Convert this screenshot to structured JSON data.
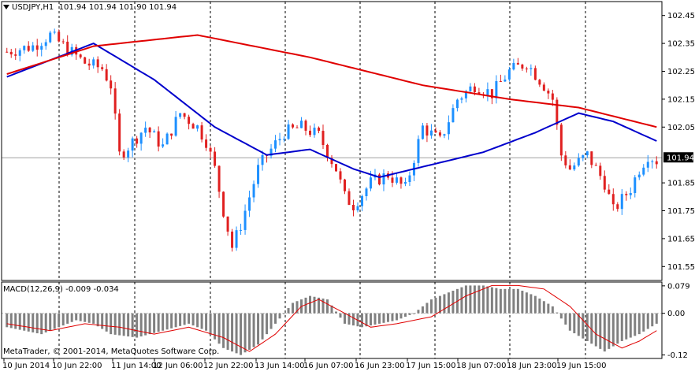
{
  "symbol_label": "USDJPY,H1",
  "ohlc_values": "101.94 101.94 101.90 101.94",
  "macd_label": "MACD(12,26,9)",
  "macd_values": "-0.009 -0.034",
  "copyright": "MetaTrader, © 2001-2014, MetaQuotes Software Corp.",
  "current_price_label": "101.94",
  "colors": {
    "bull": "#1e90ff",
    "bear": "#e02020",
    "ma_fast": "#0000cc",
    "ma_slow": "#e00000",
    "macd_hist": "#808080",
    "macd_signal": "#e00000"
  },
  "chart_data": [
    {
      "type": "candlestick",
      "yticks": [
        "102.45",
        "102.35",
        "102.25",
        "102.15",
        "102.05",
        "101.94",
        "101.85",
        "101.75",
        "101.65",
        "101.55"
      ],
      "ylim": [
        101.5,
        102.5
      ],
      "xticks": [
        "10 Jun 2014",
        "10 Jun 22:00",
        "11 Jun 14:00",
        "12 Jun 06:00",
        "12 Jun 22:00",
        "13 Jun 14:00",
        "16 Jun 07:00",
        "16 Jun 23:00",
        "17 Jun 15:00",
        "18 Jun 07:00",
        "18 Jun 23:00",
        "19 Jun 15:00"
      ],
      "current_price": 101.94,
      "price_keypoints": [
        [
          0,
          102.32
        ],
        [
          6,
          102.34
        ],
        [
          10,
          102.38
        ],
        [
          14,
          102.33
        ],
        [
          18,
          102.28
        ],
        [
          22,
          102.26
        ],
        [
          24,
          102.2
        ],
        [
          26,
          101.95
        ],
        [
          28,
          101.98
        ],
        [
          32,
          102.05
        ],
        [
          36,
          101.98
        ],
        [
          40,
          102.1
        ],
        [
          44,
          102.05
        ],
        [
          46,
          102.0
        ],
        [
          48,
          101.9
        ],
        [
          50,
          101.75
        ],
        [
          52,
          101.62
        ],
        [
          54,
          101.7
        ],
        [
          56,
          101.8
        ],
        [
          58,
          101.9
        ],
        [
          60,
          101.95
        ],
        [
          64,
          102.03
        ],
        [
          68,
          102.05
        ],
        [
          72,
          102.02
        ],
        [
          76,
          101.9
        ],
        [
          78,
          101.8
        ],
        [
          80,
          101.77
        ],
        [
          84,
          101.85
        ],
        [
          88,
          101.88
        ],
        [
          92,
          101.83
        ],
        [
          96,
          102.05
        ],
        [
          100,
          102.0
        ],
        [
          104,
          102.15
        ],
        [
          108,
          102.2
        ],
        [
          112,
          102.17
        ],
        [
          116,
          102.25
        ],
        [
          120,
          102.28
        ],
        [
          124,
          102.2
        ],
        [
          126,
          102.15
        ],
        [
          128,
          101.95
        ],
        [
          130,
          101.9
        ],
        [
          134,
          101.95
        ],
        [
          138,
          101.85
        ],
        [
          140,
          101.75
        ],
        [
          144,
          101.83
        ],
        [
          146,
          101.9
        ],
        [
          148,
          101.95
        ],
        [
          150,
          101.93
        ]
      ],
      "series": [
        {
          "name": "",
          "keypoints": [
            [
              0,
              102.23
            ],
            [
              20,
              102.35
            ],
            [
              34,
              102.22
            ],
            [
              48,
              102.05
            ],
            [
              60,
              101.95
            ],
            [
              70,
              101.97
            ],
            [
              80,
              101.9
            ],
            [
              86,
              101.87
            ],
            [
              94,
              101.9
            ],
            [
              110,
              101.96
            ],
            [
              122,
              102.03
            ],
            [
              132,
              102.1
            ],
            [
              140,
              102.07
            ],
            [
              150,
              102.0
            ]
          ]
        },
        {
          "name": "",
          "keypoints": [
            [
              0,
              102.24
            ],
            [
              20,
              102.34
            ],
            [
              44,
              102.38
            ],
            [
              70,
              102.3
            ],
            [
              96,
              102.2
            ],
            [
              116,
              102.15
            ],
            [
              132,
              102.12
            ],
            [
              150,
              102.05
            ]
          ]
        }
      ]
    },
    {
      "type": "bar",
      "title": "MACD(12,26,9)",
      "yticks": [
        "0.079",
        "0.00",
        "-0.12"
      ],
      "ylim": [
        -0.13,
        0.09
      ],
      "histogram_keypoints": [
        [
          0,
          -0.04
        ],
        [
          8,
          -0.06
        ],
        [
          12,
          -0.04
        ],
        [
          16,
          -0.02
        ],
        [
          20,
          -0.03
        ],
        [
          24,
          -0.06
        ],
        [
          30,
          -0.07
        ],
        [
          36,
          -0.05
        ],
        [
          42,
          -0.03
        ],
        [
          46,
          -0.05
        ],
        [
          50,
          -0.1
        ],
        [
          54,
          -0.12
        ],
        [
          58,
          -0.09
        ],
        [
          62,
          -0.03
        ],
        [
          66,
          0.03
        ],
        [
          70,
          0.05
        ],
        [
          74,
          0.04
        ],
        [
          78,
          -0.03
        ],
        [
          82,
          -0.04
        ],
        [
          86,
          -0.03
        ],
        [
          90,
          -0.02
        ],
        [
          94,
          0.0
        ],
        [
          98,
          0.04
        ],
        [
          102,
          0.06
        ],
        [
          106,
          0.08
        ],
        [
          110,
          0.08
        ],
        [
          114,
          0.07
        ],
        [
          118,
          0.07
        ],
        [
          122,
          0.05
        ],
        [
          126,
          0.02
        ],
        [
          130,
          -0.05
        ],
        [
          134,
          -0.08
        ],
        [
          138,
          -0.11
        ],
        [
          142,
          -0.08
        ],
        [
          146,
          -0.06
        ],
        [
          150,
          -0.03
        ]
      ],
      "signal_keypoints": [
        [
          0,
          -0.03
        ],
        [
          10,
          -0.05
        ],
        [
          18,
          -0.03
        ],
        [
          26,
          -0.04
        ],
        [
          34,
          -0.06
        ],
        [
          42,
          -0.04
        ],
        [
          50,
          -0.07
        ],
        [
          56,
          -0.11
        ],
        [
          62,
          -0.06
        ],
        [
          68,
          0.02
        ],
        [
          72,
          0.04
        ],
        [
          78,
          0.0
        ],
        [
          84,
          -0.04
        ],
        [
          90,
          -0.03
        ],
        [
          98,
          -0.01
        ],
        [
          106,
          0.05
        ],
        [
          112,
          0.08
        ],
        [
          118,
          0.08
        ],
        [
          124,
          0.07
        ],
        [
          130,
          0.02
        ],
        [
          136,
          -0.06
        ],
        [
          142,
          -0.1
        ],
        [
          146,
          -0.08
        ],
        [
          150,
          -0.05
        ]
      ]
    }
  ]
}
